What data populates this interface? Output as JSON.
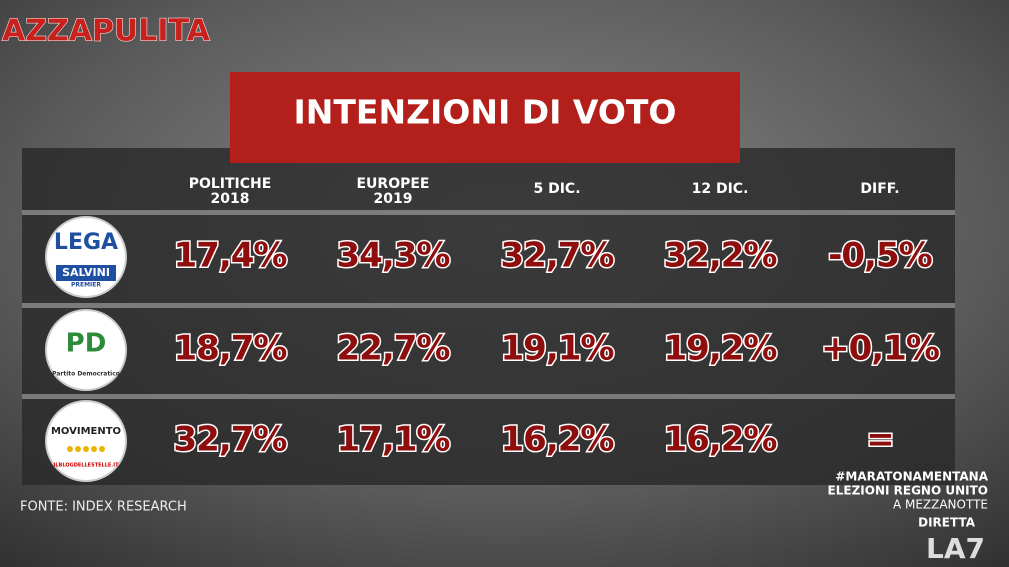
{
  "header": {
    "brand": "AZZAPULITA",
    "title": "INTENZIONI DI VOTO"
  },
  "table": {
    "columns": [
      [
        "POLITICHE",
        "2018"
      ],
      [
        "EUROPEE",
        "2019"
      ],
      [
        "5 DIC."
      ],
      [
        "12 DIC."
      ],
      [
        "DIFF."
      ]
    ],
    "rows": [
      {
        "logo": [
          "LEGA",
          "SALVINI",
          "PREMIER"
        ],
        "values": [
          "17,4%",
          "34,3%",
          "32,7%",
          "32,2%",
          "-0,5%"
        ]
      },
      {
        "logo": [
          "PD",
          "Partito Democratico"
        ],
        "values": [
          "18,7%",
          "22,7%",
          "19,1%",
          "19,2%",
          "+0,1%"
        ]
      },
      {
        "logo": [
          "MOVIMENTO",
          "ILBLOGDELLESTELLE.IT"
        ],
        "values": [
          "32,7%",
          "17,1%",
          "16,2%",
          "16,2%",
          "="
        ]
      }
    ]
  },
  "footer": {
    "source": "FONTE: INDEX RESEARCH",
    "hashtag": "#MARATONAMENTANA",
    "event": "ELEZIONI REGNO UNITO",
    "time": "A MEZZANOTTE",
    "live": "DIRETTA",
    "channel": "LA7"
  }
}
